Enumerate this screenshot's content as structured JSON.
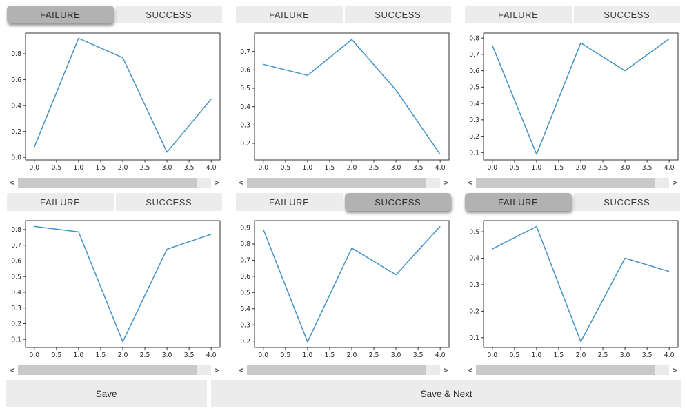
{
  "labels": {
    "failure": "FAILURE",
    "success": "SUCCESS"
  },
  "scrollbar": {
    "left_glyph": "<",
    "right_glyph": ">"
  },
  "footer": {
    "save": "Save",
    "save_next": "Save & Next"
  },
  "colors": {
    "selected_button_bg": "#b2b2b2",
    "button_bg": "#ececec",
    "scroll_thumb": "#c9c9c9",
    "scroll_track": "#ebebeb",
    "line": "#4292c6",
    "axis": "#333333"
  },
  "cells": [
    {
      "selected": "failure"
    },
    {
      "selected": null
    },
    {
      "selected": null
    },
    {
      "selected": null
    },
    {
      "selected": "success"
    },
    {
      "selected": "failure"
    }
  ],
  "chart_data": [
    {
      "type": "line",
      "grid": false,
      "legend": null,
      "x": [
        0,
        1,
        2,
        3,
        4
      ],
      "values": [
        0.08,
        0.92,
        0.77,
        0.04,
        0.45
      ],
      "xlim": [
        -0.2,
        4.2
      ],
      "ylim": [
        -0.02,
        0.96
      ],
      "xtick_labels": [
        "0.0",
        "0.5",
        "1.0",
        "1.5",
        "2.0",
        "2.5",
        "3.0",
        "3.5",
        "4.0"
      ],
      "ytick_labels": [
        "0.0",
        "0.2",
        "0.4",
        "0.6",
        "0.8"
      ]
    },
    {
      "type": "line",
      "grid": false,
      "legend": null,
      "x": [
        0,
        1,
        2,
        3,
        4
      ],
      "values": [
        0.63,
        0.57,
        0.765,
        0.49,
        0.14
      ],
      "xlim": [
        -0.2,
        4.2
      ],
      "ylim": [
        0.11,
        0.8
      ],
      "xtick_labels": [
        "0.0",
        "0.5",
        "1.0",
        "1.5",
        "2.0",
        "2.5",
        "3.0",
        "3.5",
        "4.0"
      ],
      "ytick_labels": [
        "0.2",
        "0.3",
        "0.4",
        "0.5",
        "0.6",
        "0.7"
      ]
    },
    {
      "type": "line",
      "grid": false,
      "legend": null,
      "x": [
        0,
        1,
        2,
        3,
        4
      ],
      "values": [
        0.755,
        0.09,
        0.77,
        0.6,
        0.795
      ],
      "xlim": [
        -0.2,
        4.2
      ],
      "ylim": [
        0.055,
        0.83
      ],
      "xtick_labels": [
        "0.0",
        "0.5",
        "1.0",
        "1.5",
        "2.0",
        "2.5",
        "3.0",
        "3.5",
        "4.0"
      ],
      "ytick_labels": [
        "0.1",
        "0.2",
        "0.3",
        "0.4",
        "0.5",
        "0.6",
        "0.7",
        "0.8"
      ]
    },
    {
      "type": "line",
      "grid": false,
      "legend": null,
      "x": [
        0,
        1,
        2,
        3,
        4
      ],
      "values": [
        0.82,
        0.785,
        0.085,
        0.675,
        0.77
      ],
      "xlim": [
        -0.2,
        4.2
      ],
      "ylim": [
        0.048,
        0.857
      ],
      "xtick_labels": [
        "0.0",
        "0.5",
        "1.0",
        "1.5",
        "2.0",
        "2.5",
        "3.0",
        "3.5",
        "4.0"
      ],
      "ytick_labels": [
        "0.1",
        "0.2",
        "0.3",
        "0.4",
        "0.5",
        "0.6",
        "0.7",
        "0.8"
      ]
    },
    {
      "type": "line",
      "grid": false,
      "legend": null,
      "x": [
        0,
        1,
        2,
        3,
        4
      ],
      "values": [
        0.89,
        0.195,
        0.775,
        0.61,
        0.91
      ],
      "xlim": [
        -0.2,
        4.2
      ],
      "ylim": [
        0.16,
        0.945
      ],
      "xtick_labels": [
        "0.0",
        "0.5",
        "1.0",
        "1.5",
        "2.0",
        "2.5",
        "3.0",
        "3.5",
        "4.0"
      ],
      "ytick_labels": [
        "0.2",
        "0.3",
        "0.4",
        "0.5",
        "0.6",
        "0.7",
        "0.8",
        "0.9"
      ]
    },
    {
      "type": "line",
      "grid": false,
      "legend": null,
      "x": [
        0,
        1,
        2,
        3,
        4
      ],
      "values": [
        0.435,
        0.52,
        0.085,
        0.4,
        0.35
      ],
      "xlim": [
        -0.2,
        4.2
      ],
      "ylim": [
        0.063,
        0.542
      ],
      "xtick_labels": [
        "0.0",
        "0.5",
        "1.0",
        "1.5",
        "2.0",
        "2.5",
        "3.0",
        "3.5",
        "4.0"
      ],
      "ytick_labels": [
        "0.1",
        "0.2",
        "0.3",
        "0.4",
        "0.5"
      ]
    }
  ]
}
